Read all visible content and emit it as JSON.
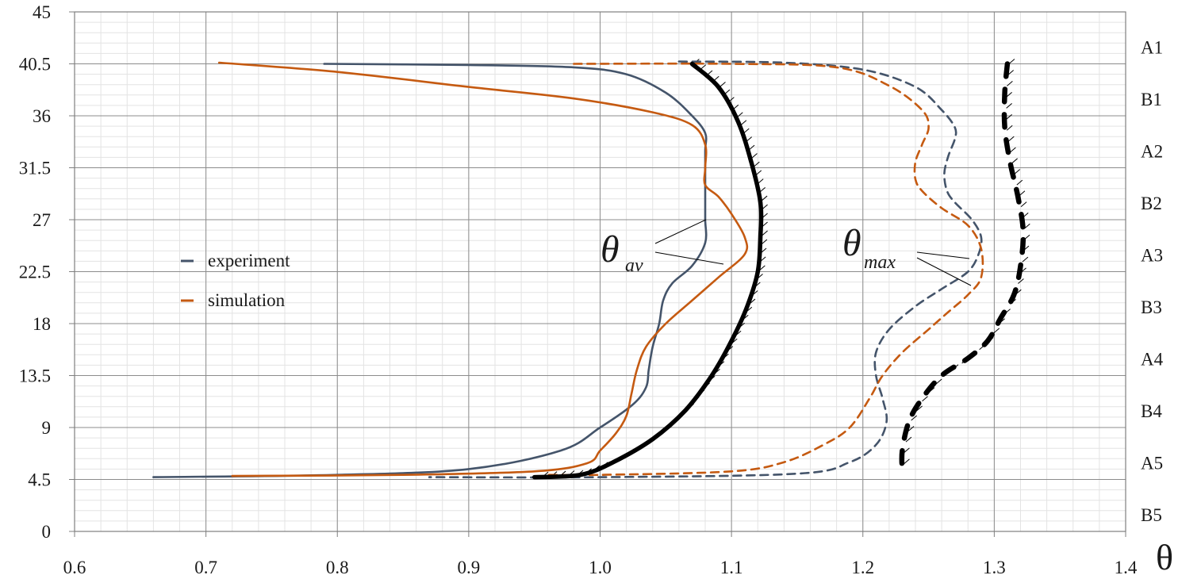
{
  "chart_data": {
    "type": "line",
    "xlabel": "θ",
    "ylabel": "",
    "xlim": [
      0.6,
      1.4
    ],
    "ylim": [
      0,
      45
    ],
    "x_ticks": [
      "0.6",
      "0.7",
      "0.8",
      "0.9",
      "1.0",
      "1.1",
      "1.2",
      "1.3",
      "1.4"
    ],
    "y_ticks": [
      "0",
      "4.5",
      "9",
      "13.5",
      "18",
      "22.5",
      "27",
      "31.5",
      "36",
      "40.5",
      "45"
    ],
    "right_labels": [
      {
        "y": 40.5,
        "text": "A1"
      },
      {
        "y": 36.0,
        "text": "B1"
      },
      {
        "y": 31.5,
        "text": "A2"
      },
      {
        "y": 27.0,
        "text": "B2"
      },
      {
        "y": 22.5,
        "text": "A3"
      },
      {
        "y": 18.0,
        "text": "B3"
      },
      {
        "y": 13.5,
        "text": "A4"
      },
      {
        "y": 9.0,
        "text": "B4"
      },
      {
        "y": 4.5,
        "text": "A5"
      },
      {
        "y": 0.0,
        "text": "B5"
      }
    ],
    "grid": "major and minor",
    "legend": {
      "position": "center-left",
      "entries": [
        {
          "label": "experiment",
          "color": "#44546A"
        },
        {
          "label": "simulation",
          "color": "#C55A11"
        }
      ]
    },
    "annotations": [
      {
        "theta": "θ",
        "sub": "av"
      },
      {
        "theta": "θ",
        "sub": "max"
      }
    ],
    "series": [
      {
        "name": "experiment",
        "kind": "θav",
        "color": "#44546A",
        "style": "solid",
        "points": [
          [
            0.79,
            40.5
          ],
          [
            0.9,
            40.4
          ],
          [
            0.98,
            40.2
          ],
          [
            1.02,
            39.6
          ],
          [
            1.05,
            38.0
          ],
          [
            1.07,
            36.0
          ],
          [
            1.08,
            34.5
          ],
          [
            1.08,
            33.0
          ],
          [
            1.08,
            31.0
          ],
          [
            1.08,
            29.0
          ],
          [
            1.08,
            27.0
          ],
          [
            1.08,
            25.0
          ],
          [
            1.07,
            23.0
          ],
          [
            1.055,
            21.5
          ],
          [
            1.048,
            20.0
          ],
          [
            1.045,
            18.0
          ],
          [
            1.04,
            16.0
          ],
          [
            1.037,
            14.0
          ],
          [
            1.035,
            12.5
          ],
          [
            1.025,
            11.0
          ],
          [
            1.0,
            9.0
          ],
          [
            0.97,
            7.0
          ],
          [
            0.9,
            5.4
          ],
          [
            0.8,
            4.9
          ],
          [
            0.66,
            4.7
          ]
        ]
      },
      {
        "name": "simulation",
        "kind": "θav",
        "color": "#C55A11",
        "style": "solid",
        "points": [
          [
            0.71,
            40.6
          ],
          [
            0.8,
            39.8
          ],
          [
            0.9,
            38.5
          ],
          [
            0.98,
            37.5
          ],
          [
            1.04,
            36.3
          ],
          [
            1.07,
            35.2
          ],
          [
            1.08,
            33.5
          ],
          [
            1.08,
            31.5
          ],
          [
            1.08,
            30.0
          ],
          [
            1.09,
            29.0
          ],
          [
            1.1,
            27.5
          ],
          [
            1.11,
            25.5
          ],
          [
            1.11,
            24.0
          ],
          [
            1.09,
            22.0
          ],
          [
            1.07,
            20.0
          ],
          [
            1.05,
            18.0
          ],
          [
            1.035,
            16.0
          ],
          [
            1.028,
            14.0
          ],
          [
            1.024,
            12.0
          ],
          [
            1.02,
            10.0
          ],
          [
            1.012,
            8.5
          ],
          [
            1.0,
            7.0
          ],
          [
            0.99,
            5.9
          ],
          [
            0.95,
            5.2
          ],
          [
            0.85,
            4.9
          ],
          [
            0.72,
            4.8
          ]
        ]
      },
      {
        "name": "experiment",
        "kind": "θmax",
        "color": "#44546A",
        "style": "dashed",
        "points": [
          [
            1.06,
            40.7
          ],
          [
            1.14,
            40.6
          ],
          [
            1.2,
            40.0
          ],
          [
            1.24,
            38.5
          ],
          [
            1.26,
            36.5
          ],
          [
            1.27,
            35.0
          ],
          [
            1.27,
            34.0
          ],
          [
            1.265,
            32.5
          ],
          [
            1.262,
            31.0
          ],
          [
            1.264,
            29.5
          ],
          [
            1.27,
            28.5
          ],
          [
            1.283,
            27.0
          ],
          [
            1.29,
            25.5
          ],
          [
            1.288,
            24.0
          ],
          [
            1.28,
            22.5
          ],
          [
            1.26,
            21.0
          ],
          [
            1.24,
            19.5
          ],
          [
            1.22,
            17.5
          ],
          [
            1.21,
            15.5
          ],
          [
            1.21,
            13.5
          ],
          [
            1.215,
            11.5
          ],
          [
            1.218,
            9.5
          ],
          [
            1.21,
            7.5
          ],
          [
            1.19,
            6.0
          ],
          [
            1.15,
            5.0
          ],
          [
            1.0,
            4.7
          ],
          [
            0.87,
            4.7
          ]
        ]
      },
      {
        "name": "simulation",
        "kind": "θmax",
        "color": "#C55A11",
        "style": "dashed",
        "points": [
          [
            0.98,
            40.5
          ],
          [
            1.1,
            40.5
          ],
          [
            1.18,
            40.2
          ],
          [
            1.22,
            38.6
          ],
          [
            1.245,
            36.5
          ],
          [
            1.25,
            35.0
          ],
          [
            1.245,
            33.5
          ],
          [
            1.24,
            32.0
          ],
          [
            1.24,
            30.5
          ],
          [
            1.245,
            29.5
          ],
          [
            1.26,
            28.0
          ],
          [
            1.28,
            26.5
          ],
          [
            1.29,
            24.5
          ],
          [
            1.29,
            22.0
          ],
          [
            1.28,
            20.5
          ],
          [
            1.265,
            19.0
          ],
          [
            1.25,
            17.5
          ],
          [
            1.23,
            15.5
          ],
          [
            1.215,
            13.5
          ],
          [
            1.205,
            11.5
          ],
          [
            1.19,
            9.0
          ],
          [
            1.17,
            7.5
          ],
          [
            1.14,
            6.0
          ],
          [
            1.1,
            5.2
          ],
          [
            1.0,
            4.9
          ],
          [
            0.96,
            4.9
          ]
        ]
      },
      {
        "kind": "θav envelope",
        "color": "#000000",
        "style": "solid-thick",
        "points": [
          [
            1.07,
            40.5
          ],
          [
            1.09,
            38.5
          ],
          [
            1.105,
            35.5
          ],
          [
            1.115,
            32.0
          ],
          [
            1.122,
            28.5
          ],
          [
            1.122,
            25.5
          ],
          [
            1.12,
            22.5
          ],
          [
            1.112,
            19.5
          ],
          [
            1.1,
            16.5
          ],
          [
            1.085,
            13.5
          ],
          [
            1.065,
            10.5
          ],
          [
            1.04,
            8.0
          ],
          [
            1.01,
            6.0
          ],
          [
            0.985,
            4.9
          ],
          [
            0.95,
            4.7
          ]
        ]
      },
      {
        "kind": "θmax envelope",
        "color": "#000000",
        "style": "dashed-thick",
        "points": [
          [
            1.31,
            40.5
          ],
          [
            1.308,
            38.0
          ],
          [
            1.308,
            35.0
          ],
          [
            1.312,
            32.0
          ],
          [
            1.318,
            29.0
          ],
          [
            1.322,
            26.0
          ],
          [
            1.32,
            23.0
          ],
          [
            1.315,
            20.5
          ],
          [
            1.305,
            18.5
          ],
          [
            1.295,
            16.5
          ],
          [
            1.28,
            15.0
          ],
          [
            1.26,
            13.5
          ],
          [
            1.245,
            11.5
          ],
          [
            1.235,
            9.5
          ],
          [
            1.23,
            7.0
          ],
          [
            1.23,
            5.2
          ]
        ]
      }
    ]
  }
}
